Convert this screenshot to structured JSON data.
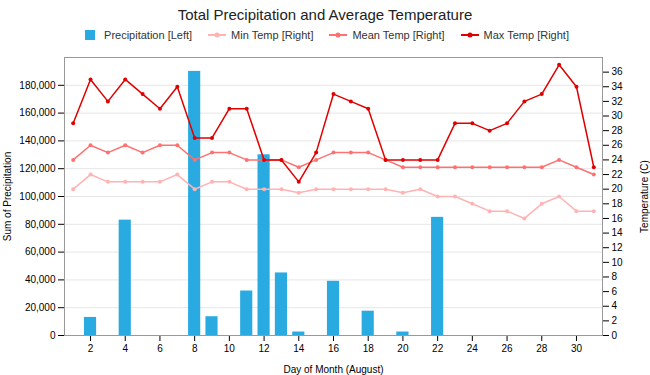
{
  "chart_data": {
    "type": "bar",
    "title": "Total Precipitation and Average Temperature",
    "xlabel": "Day of Month (August)",
    "ylabel": "Sum of Precipitation",
    "y2label": "Temperature (C)",
    "x": [
      1,
      2,
      3,
      4,
      5,
      6,
      7,
      8,
      9,
      10,
      11,
      12,
      13,
      14,
      15,
      16,
      17,
      18,
      19,
      20,
      21,
      22,
      23,
      24,
      25,
      26,
      27,
      28,
      29,
      30,
      31
    ],
    "series": [
      {
        "name": "Precipitation [Left]",
        "type": "bar",
        "color": "#29ABE2",
        "values": [
          0,
          13000,
          0,
          83000,
          0,
          0,
          0,
          190000,
          13500,
          0,
          32000,
          130000,
          45000,
          2500,
          0,
          39000,
          0,
          17500,
          0,
          2500,
          0,
          85000,
          0,
          0,
          0,
          0,
          0,
          0,
          0,
          0,
          0
        ]
      },
      {
        "name": "Min Temp [Right]",
        "type": "line",
        "axis": "y2",
        "color": "#FFB3B3",
        "marker": "circle",
        "values": [
          20,
          22,
          21,
          21,
          21,
          21,
          22,
          20,
          21,
          21,
          20,
          20,
          20,
          19.5,
          20,
          20,
          20,
          20,
          20,
          19.5,
          20,
          19,
          19,
          18,
          17,
          17,
          16,
          18,
          19,
          17,
          17
        ]
      },
      {
        "name": "Mean Temp [Right]",
        "type": "line",
        "axis": "y2",
        "color": "#FF7070",
        "marker": "circle",
        "values": [
          24,
          26,
          25,
          26,
          25,
          26,
          26,
          24,
          25,
          25,
          24,
          24,
          24,
          23,
          24,
          25,
          25,
          25,
          24,
          23,
          23,
          23,
          23,
          23,
          23,
          23,
          23,
          23,
          24,
          23,
          22
        ]
      },
      {
        "name": "Max Temp [Right]",
        "type": "line",
        "axis": "y2",
        "color": "#E00000",
        "marker": "circle",
        "values": [
          29,
          35,
          32,
          35,
          33,
          31,
          34,
          27,
          27,
          31,
          31,
          24,
          24,
          21,
          25,
          33,
          32,
          31,
          24,
          24,
          24,
          24,
          29,
          29,
          28,
          29,
          32,
          33,
          37,
          34,
          23
        ]
      }
    ],
    "xlim": [
      0.5,
      31.5
    ],
    "xticks": [
      2,
      4,
      6,
      8,
      10,
      12,
      14,
      16,
      18,
      20,
      22,
      24,
      26,
      28,
      30
    ],
    "ylim": [
      0,
      200000
    ],
    "yticks": [
      0,
      {
        "value": 20000,
        "label": "20,000"
      },
      {
        "value": 40000,
        "label": "40,000"
      },
      {
        "value": 60000,
        "label": "60,000"
      },
      {
        "value": 80000,
        "label": "80,000"
      },
      {
        "value": 100000,
        "label": "100,000"
      },
      {
        "value": 120000,
        "label": "120,000"
      },
      {
        "value": 140000,
        "label": "140,000"
      },
      {
        "value": 160000,
        "label": "160,000"
      },
      {
        "value": 180000,
        "label": "180,000"
      }
    ],
    "y2lim": [
      0,
      38
    ],
    "y2ticks": [
      0,
      2,
      4,
      6,
      8,
      10,
      12,
      14,
      16,
      18,
      20,
      22,
      24,
      26,
      28,
      30,
      32,
      34,
      36
    ],
    "grid": true,
    "legend": "top"
  }
}
